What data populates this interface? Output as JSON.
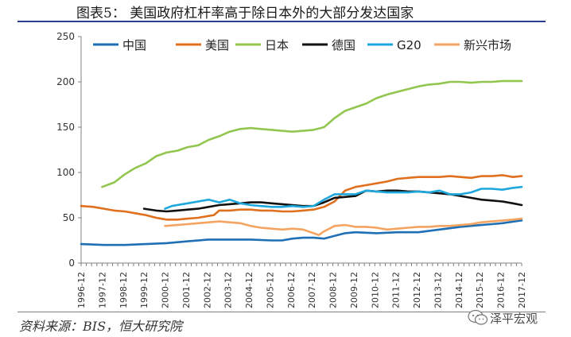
{
  "header": {
    "title": "图表5：  美国政府杠杆率高于除日本外的大部分发达国家"
  },
  "footer": {
    "source": "资料来源：BIS，恒大研究院",
    "watermark_text": "泽平宏观",
    "watermark_icon": "wechat-icon"
  },
  "chart_data": {
    "type": "line",
    "title": "",
    "xlabel": "",
    "ylabel": "",
    "ylim": [
      0,
      250
    ],
    "yticks": [
      0,
      50,
      100,
      150,
      200,
      250
    ],
    "xlim": [
      1996.92,
      2017.92
    ],
    "xtick_labels": [
      "1996-12",
      "1997-12",
      "1998-12",
      "1999-12",
      "2000-12",
      "2001-12",
      "2002-12",
      "2003-12",
      "2004-12",
      "2005-12",
      "2006-12",
      "2007-12",
      "2008-12",
      "2009-12",
      "2010-12",
      "2011-12",
      "2012-12",
      "2013-12",
      "2014-12",
      "2015-12",
      "2016-12",
      "2017-12"
    ],
    "grid": false,
    "legend_position": "top",
    "series": [
      {
        "name": "中国",
        "color": "#1f6fb5",
        "x": [
          1996.92,
          1998.0,
          1999.0,
          2000.0,
          2001.0,
          2002.0,
          2003.0,
          2004.0,
          2005.0,
          2006.0,
          2006.5,
          2007.0,
          2007.5,
          2008.0,
          2008.5,
          2009.0,
          2009.5,
          2010.0,
          2011.0,
          2012.0,
          2013.0,
          2014.0,
          2015.0,
          2016.0,
          2016.5,
          2017.0,
          2017.92
        ],
        "y": [
          21,
          20,
          20,
          21,
          22,
          24,
          26,
          26,
          26,
          25,
          25,
          27,
          28,
          28,
          27,
          30,
          33,
          34,
          33,
          34,
          34,
          37,
          40,
          42,
          43,
          44,
          47
        ]
      },
      {
        "name": "美国",
        "color": "#e0701e",
        "x": [
          1996.92,
          1997.5,
          1998.0,
          1998.5,
          1999.0,
          1999.5,
          2000.0,
          2000.5,
          2001.0,
          2001.5,
          2002.0,
          2002.5,
          2003.0,
          2003.25,
          2003.5,
          2004.0,
          2004.5,
          2005.0,
          2005.5,
          2006.0,
          2006.5,
          2007.0,
          2007.5,
          2008.0,
          2008.5,
          2009.0,
          2009.5,
          2010.0,
          2010.5,
          2011.0,
          2011.5,
          2012.0,
          2012.5,
          2013.0,
          2013.5,
          2014.0,
          2014.5,
          2015.0,
          2015.5,
          2016.0,
          2016.5,
          2017.0,
          2017.5,
          2017.92
        ],
        "y": [
          63,
          62,
          60,
          58,
          57,
          55,
          53,
          50,
          48,
          48,
          49,
          50,
          52,
          53,
          58,
          58,
          59,
          59,
          58,
          58,
          57,
          57,
          58,
          59,
          62,
          68,
          80,
          84,
          86,
          88,
          90,
          93,
          94,
          95,
          95,
          95,
          96,
          95,
          94,
          96,
          96,
          97,
          95,
          96
        ]
      },
      {
        "name": "日本",
        "color": "#92c64f",
        "x": [
          1997.92,
          1998.5,
          1999.0,
          1999.5,
          2000.0,
          2000.5,
          2001.0,
          2001.5,
          2002.0,
          2002.5,
          2003.0,
          2003.5,
          2004.0,
          2004.5,
          2005.0,
          2005.5,
          2006.0,
          2006.5,
          2007.0,
          2007.5,
          2008.0,
          2008.5,
          2009.0,
          2009.5,
          2010.0,
          2010.5,
          2011.0,
          2011.5,
          2012.0,
          2012.5,
          2013.0,
          2013.5,
          2014.0,
          2014.5,
          2015.0,
          2015.5,
          2016.0,
          2016.5,
          2017.0,
          2017.5,
          2017.92
        ],
        "y": [
          84,
          89,
          98,
          105,
          110,
          118,
          122,
          124,
          128,
          130,
          136,
          140,
          145,
          148,
          149,
          148,
          147,
          146,
          145,
          146,
          147,
          150,
          160,
          168,
          172,
          176,
          182,
          186,
          189,
          192,
          195,
          197,
          198,
          200,
          200,
          199,
          200,
          200,
          201,
          201,
          201
        ]
      },
      {
        "name": "德国",
        "color": "#111111",
        "x": [
          1999.92,
          2000.5,
          2001.0,
          2001.5,
          2002.0,
          2002.5,
          2003.0,
          2003.5,
          2004.0,
          2004.5,
          2005.0,
          2005.5,
          2006.0,
          2006.5,
          2007.0,
          2007.5,
          2008.0,
          2008.5,
          2009.0,
          2009.5,
          2010.0,
          2010.5,
          2011.0,
          2011.5,
          2012.0,
          2012.5,
          2013.0,
          2013.5,
          2014.0,
          2014.5,
          2015.0,
          2015.5,
          2016.0,
          2016.5,
          2017.0,
          2017.5,
          2017.92
        ],
        "y": [
          60,
          58,
          57,
          58,
          59,
          60,
          62,
          64,
          65,
          66,
          67,
          67,
          66,
          65,
          64,
          63,
          63,
          67,
          72,
          73,
          74,
          80,
          79,
          80,
          80,
          79,
          79,
          78,
          77,
          76,
          74,
          72,
          70,
          69,
          68,
          66,
          64
        ]
      },
      {
        "name": "G20",
        "color": "#1ea7dc",
        "x": [
          2000.92,
          2001.25,
          2001.5,
          2002.0,
          2002.5,
          2003.0,
          2003.5,
          2004.0,
          2004.5,
          2005.0,
          2005.5,
          2006.0,
          2006.5,
          2007.0,
          2007.5,
          2008.0,
          2008.5,
          2009.0,
          2009.5,
          2010.0,
          2010.5,
          2011.0,
          2011.5,
          2012.0,
          2012.5,
          2013.0,
          2013.5,
          2014.0,
          2014.5,
          2015.0,
          2015.5,
          2016.0,
          2016.5,
          2017.0,
          2017.5,
          2017.92
        ],
        "y": [
          60,
          63,
          64,
          66,
          68,
          70,
          67,
          70,
          66,
          64,
          63,
          62,
          62,
          63,
          62,
          63,
          70,
          76,
          76,
          76,
          80,
          79,
          78,
          78,
          78,
          79,
          78,
          80,
          76,
          76,
          78,
          82,
          82,
          81,
          83,
          84
        ]
      },
      {
        "name": "新兴市场",
        "color": "#f4a460",
        "x": [
          2000.92,
          2001.5,
          2002.0,
          2002.5,
          2003.0,
          2003.5,
          2004.0,
          2004.5,
          2005.0,
          2005.5,
          2006.0,
          2006.5,
          2007.0,
          2007.5,
          2008.0,
          2008.25,
          2008.5,
          2009.0,
          2009.5,
          2010.0,
          2010.5,
          2011.0,
          2011.5,
          2012.0,
          2012.5,
          2013.0,
          2013.5,
          2014.0,
          2014.5,
          2015.0,
          2015.5,
          2016.0,
          2016.5,
          2017.0,
          2017.5,
          2017.92
        ],
        "y": [
          41,
          42,
          43,
          44,
          45,
          46,
          45,
          44,
          41,
          39,
          38,
          37,
          38,
          37,
          33,
          31,
          35,
          41,
          42,
          40,
          40,
          39,
          37,
          38,
          39,
          40,
          40,
          41,
          41,
          42,
          43,
          45,
          46,
          47,
          48,
          49
        ]
      }
    ]
  }
}
